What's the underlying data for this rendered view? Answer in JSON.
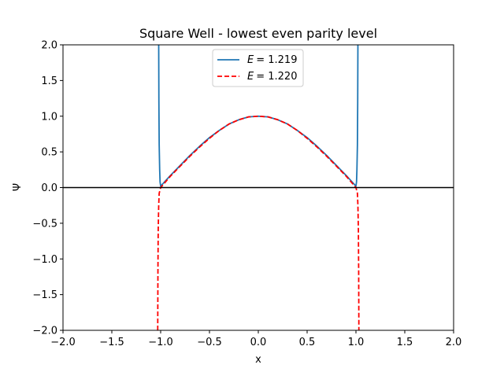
{
  "chart_data": {
    "type": "line",
    "title": "Square Well - lowest even parity level",
    "xlabel": "x",
    "ylabel": "Ψ",
    "xlim": [
      -2.0,
      2.0
    ],
    "ylim": [
      -2.0,
      2.0
    ],
    "x_ticks": [
      -2.0,
      -1.5,
      -1.0,
      -0.5,
      0.0,
      0.5,
      1.0,
      1.5,
      2.0
    ],
    "y_ticks": [
      -2.0,
      -1.5,
      -1.0,
      -0.5,
      0.0,
      0.5,
      1.0,
      1.5,
      2.0
    ],
    "x_tick_labels": [
      "−2.0",
      "−1.5",
      "−1.0",
      "−0.5",
      "0.0",
      "0.5",
      "1.0",
      "1.5",
      "2.0"
    ],
    "y_tick_labels": [
      "−2.0",
      "−1.5",
      "−1.0",
      "−0.5",
      "0.0",
      "0.5",
      "1.0",
      "1.5",
      "2.0"
    ],
    "grid": false,
    "legend_position": "upper center",
    "horizontal_reference_line": {
      "y": 0.0,
      "color": "#000000"
    },
    "series": [
      {
        "name": "E = 1.219",
        "legend_symbol": "E",
        "legend_value": "= 1.219",
        "color": "#1f77b4",
        "dash": "solid",
        "points": [
          [
            -1.02,
            2.0
          ],
          [
            -1.018,
            1.2
          ],
          [
            -1.015,
            0.6
          ],
          [
            -1.01,
            0.25
          ],
          [
            -1.006,
            0.08
          ],
          [
            -1.0,
            0.02
          ],
          [
            -0.9,
            0.17
          ],
          [
            -0.8,
            0.31
          ],
          [
            -0.7,
            0.45
          ],
          [
            -0.6,
            0.58
          ],
          [
            -0.5,
            0.7
          ],
          [
            -0.4,
            0.8
          ],
          [
            -0.3,
            0.89
          ],
          [
            -0.2,
            0.95
          ],
          [
            -0.1,
            0.99
          ],
          [
            0.0,
            1.0
          ],
          [
            0.1,
            0.99
          ],
          [
            0.2,
            0.95
          ],
          [
            0.3,
            0.89
          ],
          [
            0.4,
            0.8
          ],
          [
            0.5,
            0.7
          ],
          [
            0.6,
            0.58
          ],
          [
            0.7,
            0.45
          ],
          [
            0.8,
            0.31
          ],
          [
            0.9,
            0.17
          ],
          [
            1.0,
            0.02
          ],
          [
            1.006,
            0.08
          ],
          [
            1.01,
            0.25
          ],
          [
            1.015,
            0.6
          ],
          [
            1.018,
            1.2
          ],
          [
            1.02,
            2.0
          ]
        ]
      },
      {
        "name": "E = 1.220",
        "legend_symbol": "E",
        "legend_value": "= 1.220",
        "color": "#ff0000",
        "dash": "dashed",
        "points": [
          [
            -1.03,
            -2.0
          ],
          [
            -1.028,
            -1.2
          ],
          [
            -1.025,
            -0.6
          ],
          [
            -1.02,
            -0.25
          ],
          [
            -1.015,
            -0.08
          ],
          [
            -1.0,
            0.0
          ],
          [
            -0.9,
            0.16
          ],
          [
            -0.8,
            0.3
          ],
          [
            -0.7,
            0.44
          ],
          [
            -0.6,
            0.57
          ],
          [
            -0.5,
            0.69
          ],
          [
            -0.4,
            0.8
          ],
          [
            -0.3,
            0.89
          ],
          [
            -0.2,
            0.95
          ],
          [
            -0.1,
            0.99
          ],
          [
            0.0,
            1.0
          ],
          [
            0.1,
            0.99
          ],
          [
            0.2,
            0.95
          ],
          [
            0.3,
            0.89
          ],
          [
            0.4,
            0.8
          ],
          [
            0.5,
            0.69
          ],
          [
            0.6,
            0.57
          ],
          [
            0.7,
            0.44
          ],
          [
            0.8,
            0.3
          ],
          [
            0.9,
            0.16
          ],
          [
            1.0,
            0.0
          ],
          [
            1.015,
            -0.08
          ],
          [
            1.02,
            -0.25
          ],
          [
            1.025,
            -0.6
          ],
          [
            1.028,
            -1.2
          ],
          [
            1.03,
            -2.0
          ]
        ]
      }
    ]
  }
}
